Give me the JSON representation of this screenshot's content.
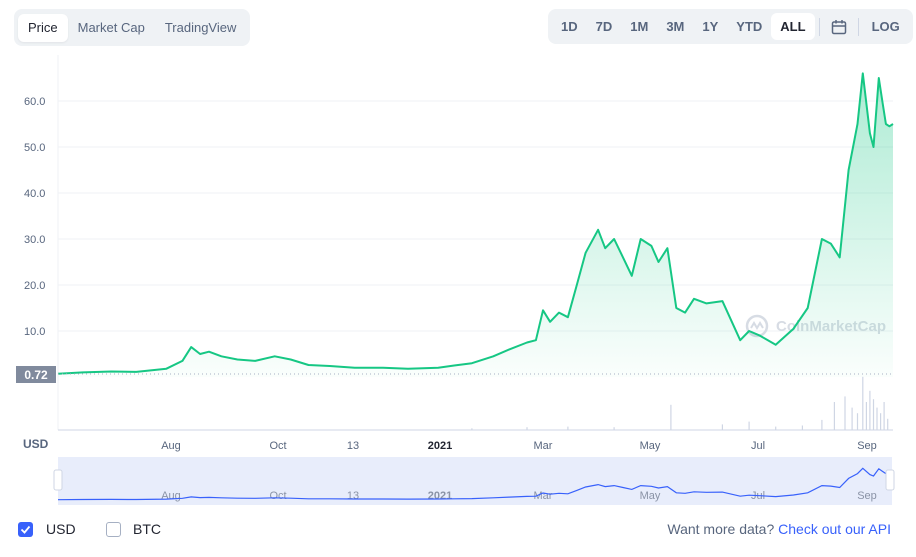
{
  "tabs": [
    {
      "label": "Price",
      "active": true
    },
    {
      "label": "Market Cap",
      "active": false
    },
    {
      "label": "TradingView",
      "active": false
    }
  ],
  "ranges": [
    {
      "label": "1D",
      "active": false
    },
    {
      "label": "7D",
      "active": false
    },
    {
      "label": "1M",
      "active": false
    },
    {
      "label": "3M",
      "active": false
    },
    {
      "label": "1Y",
      "active": false
    },
    {
      "label": "YTD",
      "active": false
    },
    {
      "label": "ALL",
      "active": true
    }
  ],
  "log_label": "LOG",
  "currency_label": "USD",
  "watermark": "CoinMarketCap",
  "current_price_label": "0.72",
  "footer": {
    "usd_label": "USD",
    "btc_label": "BTC",
    "more_text": "Want more data?",
    "api_link": "Check out our API"
  },
  "colors": {
    "line": "#16c784",
    "navigator_line": "#3861fb",
    "navigator_bg": "#e8edfb",
    "accent": "#3861fb"
  },
  "chart_data": {
    "type": "area",
    "x_tick_labels": [
      "Aug",
      "Oct",
      "13",
      "2021",
      "Mar",
      "May",
      "Jul",
      "Sep"
    ],
    "y_tick_labels": [
      "10.0",
      "20.0",
      "30.0",
      "40.0",
      "50.0",
      "60.0"
    ],
    "ylim": [
      0,
      70
    ],
    "grid": true,
    "legend": "none",
    "series": [
      {
        "x": [
          "2020-06-01",
          "2020-06-15",
          "2020-07-01",
          "2020-07-15",
          "2020-08-01",
          "2020-08-10",
          "2020-08-15",
          "2020-08-20",
          "2020-08-25",
          "2020-09-01",
          "2020-09-10",
          "2020-09-20",
          "2020-10-01",
          "2020-10-10",
          "2020-10-20",
          "2020-11-01",
          "2020-11-15",
          "2020-12-01",
          "2020-12-15",
          "2021-01-01",
          "2021-01-10",
          "2021-01-20",
          "2021-02-01",
          "2021-02-10",
          "2021-02-20",
          "2021-02-25",
          "2021-03-01",
          "2021-03-05",
          "2021-03-10",
          "2021-03-15",
          "2021-03-20",
          "2021-03-25",
          "2021-04-01",
          "2021-04-05",
          "2021-04-10",
          "2021-04-15",
          "2021-04-20",
          "2021-04-25",
          "2021-05-01",
          "2021-05-05",
          "2021-05-10",
          "2021-05-15",
          "2021-05-20",
          "2021-05-25",
          "2021-06-01",
          "2021-06-10",
          "2021-06-20",
          "2021-06-25",
          "2021-07-01",
          "2021-07-10",
          "2021-07-20",
          "2021-07-28",
          "2021-08-05",
          "2021-08-10",
          "2021-08-15",
          "2021-08-20",
          "2021-08-25",
          "2021-08-28",
          "2021-09-01",
          "2021-09-03",
          "2021-09-06",
          "2021-09-08",
          "2021-09-10",
          "2021-09-12",
          "2021-09-14"
        ],
        "y": [
          0.72,
          1.0,
          1.2,
          1.1,
          1.8,
          3.5,
          6.5,
          5.0,
          5.5,
          4.5,
          3.8,
          3.5,
          4.5,
          3.8,
          2.6,
          2.4,
          2.0,
          2.0,
          1.8,
          2.0,
          2.5,
          3.0,
          4.5,
          6.0,
          7.5,
          8.0,
          14.5,
          12.0,
          14.0,
          13.0,
          20.0,
          27.0,
          32.0,
          28.0,
          30.0,
          26.0,
          22.0,
          30.0,
          28.5,
          25.0,
          28.0,
          15.0,
          14.0,
          17.0,
          16.0,
          16.5,
          8.0,
          10.0,
          9.0,
          7.0,
          10.5,
          15.0,
          30.0,
          29.0,
          26.0,
          45.0,
          55.0,
          66.0,
          53.0,
          50.0,
          65.0,
          60.0,
          55.0,
          54.5,
          55.0
        ]
      }
    ],
    "volume": {
      "x": [
        "2021-01-20",
        "2021-02-20",
        "2021-03-15",
        "2021-04-10",
        "2021-05-12",
        "2021-06-10",
        "2021-06-25",
        "2021-07-10",
        "2021-07-25",
        "2021-08-05",
        "2021-08-12",
        "2021-08-18",
        "2021-08-22",
        "2021-08-25",
        "2021-08-28",
        "2021-08-30",
        "2021-09-01",
        "2021-09-03",
        "2021-09-05",
        "2021-09-07",
        "2021-09-09",
        "2021-09-11"
      ],
      "y": [
        0.03,
        0.05,
        0.06,
        0.05,
        0.45,
        0.1,
        0.15,
        0.06,
        0.08,
        0.18,
        0.5,
        0.6,
        0.4,
        0.3,
        0.95,
        0.5,
        0.7,
        0.55,
        0.4,
        0.3,
        0.5,
        0.2
      ]
    }
  }
}
